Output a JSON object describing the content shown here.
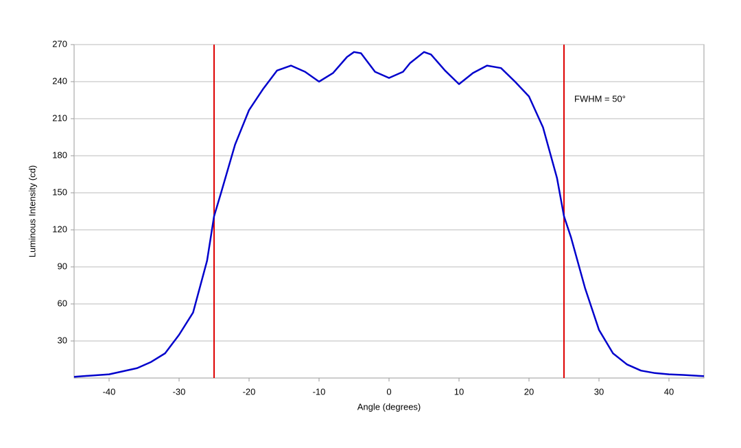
{
  "chart_data": {
    "type": "line",
    "x_label": "Angle (degrees)",
    "y_label": "Luminous Intensity (cd)",
    "annotation": "FWHM = 50°",
    "x": [
      -45,
      -40,
      -36,
      -34,
      -32,
      -30,
      -28,
      -26,
      -25,
      -24,
      -22,
      -20,
      -18,
      -16,
      -14,
      -12,
      -10,
      -8,
      -6,
      -5,
      -4,
      -2,
      0,
      2,
      3,
      5,
      6,
      8,
      10,
      12,
      14,
      16,
      18,
      20,
      22,
      24,
      25,
      26,
      28,
      30,
      32,
      34,
      36,
      38,
      40,
      42,
      45
    ],
    "series": [
      {
        "color": "#0000cc",
        "values": [
          1,
          3,
          8,
          13,
          20,
          35,
          53,
          95,
          131,
          150,
          189,
          217,
          234,
          249,
          253,
          248,
          240,
          247,
          260,
          264,
          263,
          248,
          243,
          248,
          255,
          264,
          262,
          249,
          238,
          247,
          253,
          251,
          240,
          228,
          203,
          162,
          131,
          114,
          73,
          39,
          20,
          11,
          6,
          4,
          3,
          2.5,
          1.5
        ]
      }
    ],
    "vlines": [
      -25,
      25
    ],
    "vline_color": "#dd0000",
    "xlim": [
      -45,
      45
    ],
    "xticks": [
      -40,
      -30,
      -20,
      -10,
      0,
      10,
      20,
      30,
      40
    ],
    "ylim": [
      0,
      270
    ],
    "yticks": [
      30,
      60,
      90,
      120,
      150,
      180,
      210,
      240,
      270
    ],
    "grid": true
  }
}
